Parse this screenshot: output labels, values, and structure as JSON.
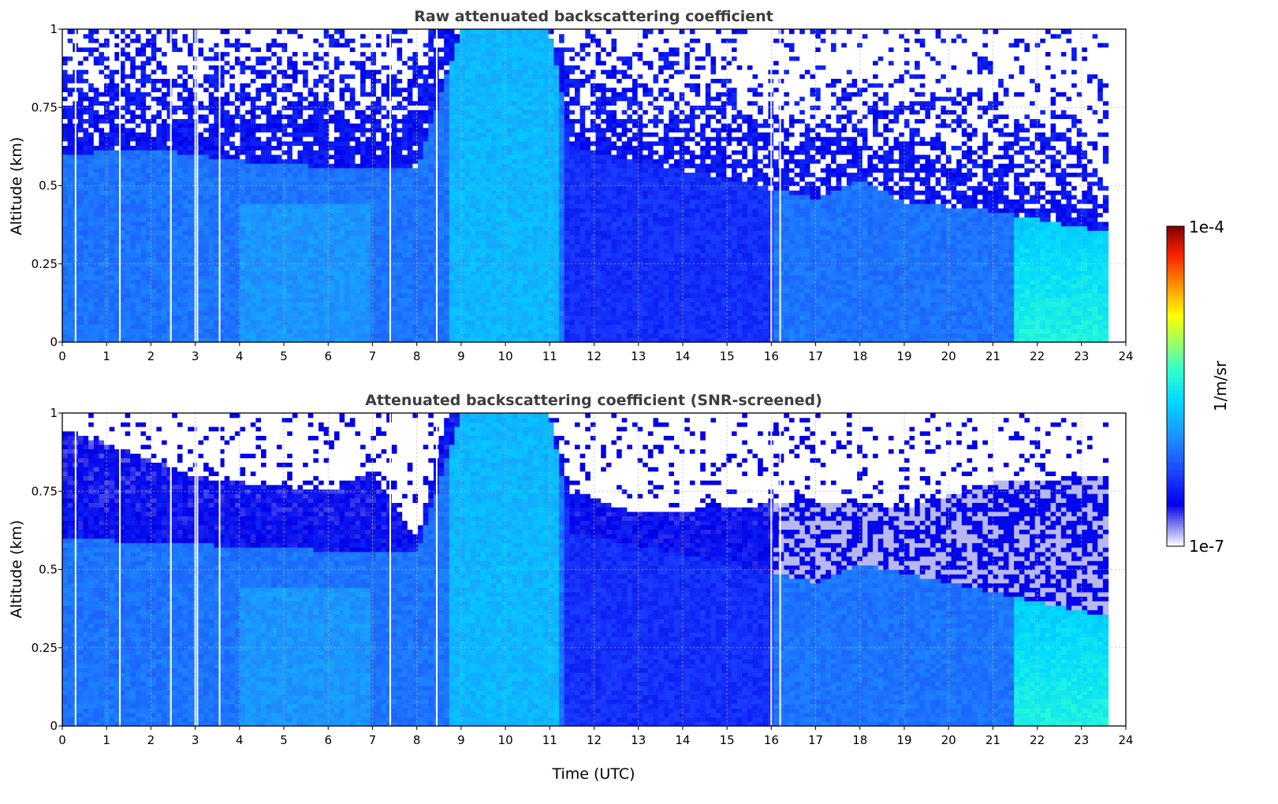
{
  "chart_data": [
    {
      "type": "heatmap",
      "title": "Raw attenuated backscattering coefficient",
      "xlabel": "",
      "ylabel": "Altitude (km)",
      "xlim": [
        0,
        24
      ],
      "ylim": [
        0,
        1
      ],
      "x_ticks": [
        "0",
        "1",
        "2",
        "3",
        "4",
        "5",
        "6",
        "7",
        "8",
        "9",
        "10",
        "11",
        "12",
        "13",
        "14",
        "15",
        "16",
        "17",
        "18",
        "19",
        "20",
        "21",
        "22",
        "23",
        "24"
      ],
      "y_ticks": [
        "0",
        "0.25",
        "0.5",
        "0.75",
        "1"
      ],
      "grid": true,
      "screened": false,
      "data_end_hour": 23.6,
      "gap_hours": [
        0.3,
        1.3,
        2.45,
        3.0,
        3.05,
        3.55,
        7.4,
        8.45,
        16.0,
        16.2
      ],
      "boundary_layer_top_km": [
        {
          "t": 0,
          "z": 0.6
        },
        {
          "t": 2,
          "z": 0.62
        },
        {
          "t": 4,
          "z": 0.58
        },
        {
          "t": 6,
          "z": 0.56
        },
        {
          "t": 8,
          "z": 0.55
        },
        {
          "t": 9,
          "z": 1.0
        },
        {
          "t": 11,
          "z": 1.0
        },
        {
          "t": 11.5,
          "z": 0.62
        },
        {
          "t": 14,
          "z": 0.55
        },
        {
          "t": 17,
          "z": 0.46
        },
        {
          "t": 18,
          "z": 0.52
        },
        {
          "t": 19,
          "z": 0.45
        },
        {
          "t": 21,
          "z": 0.42
        },
        {
          "t": 23.6,
          "z": 0.35
        }
      ]
    },
    {
      "type": "heatmap",
      "title": "Attenuated backscattering coefficient (SNR-screened)",
      "xlabel": "Time (UTC)",
      "ylabel": "Altitude (km)",
      "xlim": [
        0,
        24
      ],
      "ylim": [
        0,
        1
      ],
      "x_ticks": [
        "0",
        "1",
        "2",
        "3",
        "4",
        "5",
        "6",
        "7",
        "8",
        "9",
        "10",
        "11",
        "12",
        "13",
        "14",
        "15",
        "16",
        "17",
        "18",
        "19",
        "20",
        "21",
        "22",
        "23",
        "24"
      ],
      "y_ticks": [
        "0",
        "0.25",
        "0.5",
        "0.75",
        "1"
      ],
      "grid": true,
      "screened": true,
      "data_end_hour": 23.6,
      "gap_hours": [
        0.3,
        1.3,
        2.45,
        3.0,
        3.05,
        3.55,
        7.4,
        8.45,
        16.0,
        16.2
      ],
      "screen_top_km": [
        {
          "t": 0,
          "z": 0.95
        },
        {
          "t": 1.5,
          "z": 0.88
        },
        {
          "t": 3,
          "z": 0.8
        },
        {
          "t": 4,
          "z": 0.78
        },
        {
          "t": 6,
          "z": 0.75
        },
        {
          "t": 7,
          "z": 0.82
        },
        {
          "t": 8,
          "z": 0.6
        },
        {
          "t": 8.7,
          "z": 1.0
        },
        {
          "t": 11,
          "z": 1.0
        },
        {
          "t": 11.5,
          "z": 0.75
        },
        {
          "t": 13,
          "z": 0.68
        },
        {
          "t": 15,
          "z": 0.7
        },
        {
          "t": 17,
          "z": 0.72
        },
        {
          "t": 19,
          "z": 0.7
        },
        {
          "t": 21,
          "z": 0.78
        },
        {
          "t": 23.6,
          "z": 0.8
        }
      ]
    }
  ],
  "colorbar": {
    "label": "1/m/sr",
    "max_label": "1e-4",
    "min_label": "1e-7",
    "scale": "log",
    "range": [
      1e-07,
      0.0001
    ],
    "colormap": "jet-with-white-low"
  }
}
